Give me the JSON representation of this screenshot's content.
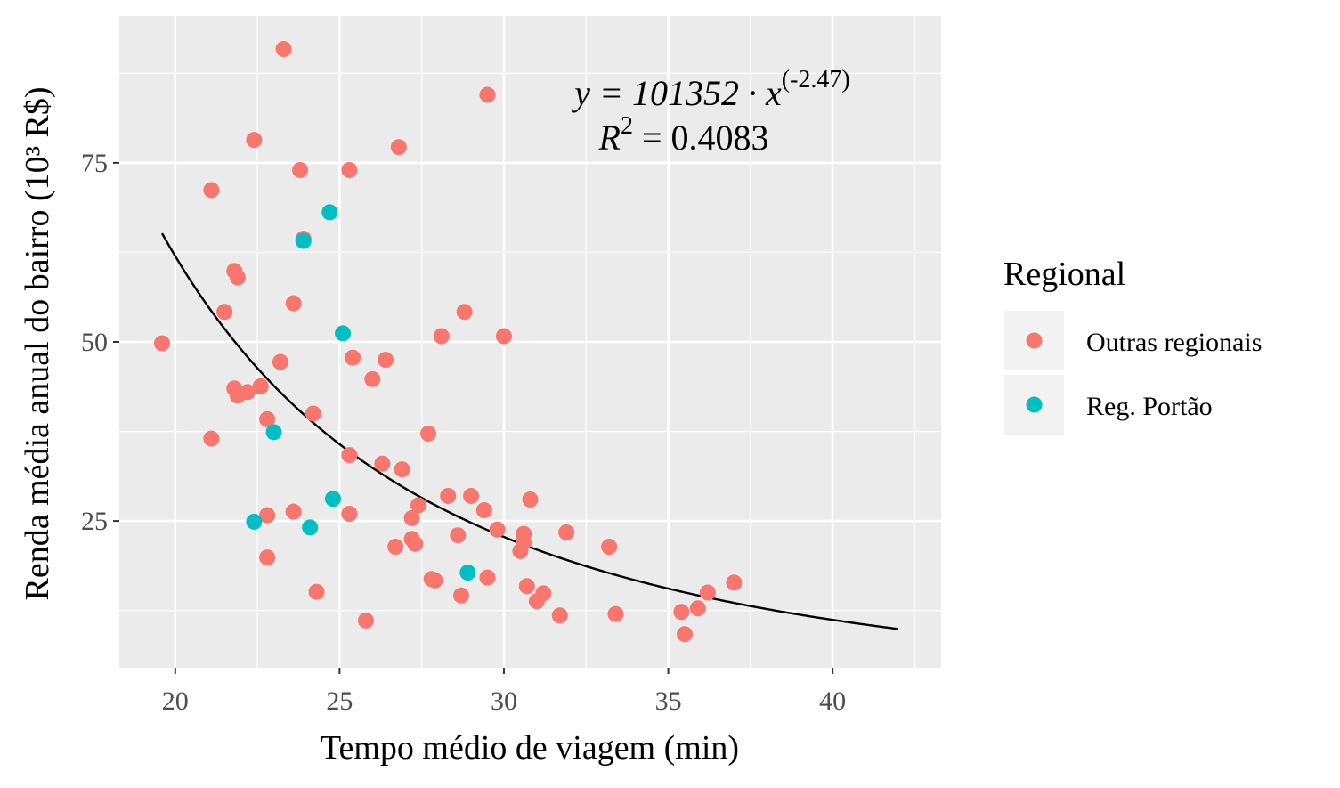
{
  "chart_data": {
    "type": "scatter",
    "title": "",
    "xlabel": "Tempo médio de viagem (min)",
    "ylabel": "Renda média anual do bairro (10³ R$)",
    "xlim": [
      18.3,
      43.3
    ],
    "ylim": [
      4.5,
      95.5
    ],
    "xticks": [
      20,
      25,
      30,
      35,
      40
    ],
    "yticks": [
      25,
      50,
      75
    ],
    "x_tick_labels": [
      "20",
      "25",
      "30",
      "35",
      "40"
    ],
    "y_tick_labels": [
      "25",
      "50",
      "75"
    ],
    "grid": true,
    "legend": {
      "title": "Regional",
      "position": "right",
      "entries": [
        "Outras regionais",
        "Reg. Portão"
      ]
    },
    "annotation": {
      "equation_prefix": "y = 101352 · x",
      "equation_exponent": "(-2.47)",
      "r2_label": "R",
      "r2_exponent": "2",
      "r2_value": " = 0.4083"
    },
    "fit": {
      "name": "y = 101352 · x^(-2.47)",
      "coefficient": 101352,
      "exponent": -2.47,
      "x_range": [
        19.6,
        42.0
      ],
      "color": "#000000"
    },
    "series": [
      {
        "name": "Outras regionais",
        "color": "#F8766D",
        "points": [
          [
            19.6,
            49.8
          ],
          [
            21.1,
            71.2
          ],
          [
            21.1,
            36.5
          ],
          [
            21.5,
            54.2
          ],
          [
            21.8,
            59.9
          ],
          [
            21.9,
            59.0
          ],
          [
            21.8,
            43.5
          ],
          [
            21.9,
            42.5
          ],
          [
            22.2,
            43.0
          ],
          [
            22.4,
            78.2
          ],
          [
            22.6,
            43.8
          ],
          [
            22.8,
            39.2
          ],
          [
            22.8,
            25.8
          ],
          [
            22.8,
            19.9
          ],
          [
            23.2,
            47.2
          ],
          [
            23.3,
            90.9
          ],
          [
            23.6,
            26.3
          ],
          [
            23.6,
            55.4
          ],
          [
            23.8,
            74.0
          ],
          [
            23.9,
            64.4
          ],
          [
            24.2,
            40.0
          ],
          [
            24.3,
            15.1
          ],
          [
            25.3,
            74.0
          ],
          [
            25.3,
            34.2
          ],
          [
            25.4,
            47.8
          ],
          [
            25.3,
            26.0
          ],
          [
            25.8,
            11.1
          ],
          [
            26.0,
            44.8
          ],
          [
            26.3,
            33.0
          ],
          [
            26.4,
            47.5
          ],
          [
            26.7,
            21.4
          ],
          [
            26.8,
            77.2
          ],
          [
            26.9,
            32.2
          ],
          [
            27.2,
            22.5
          ],
          [
            27.2,
            25.4
          ],
          [
            27.3,
            21.8
          ],
          [
            27.4,
            27.2
          ],
          [
            27.7,
            37.2
          ],
          [
            27.8,
            16.9
          ],
          [
            27.9,
            16.7
          ],
          [
            28.1,
            50.8
          ],
          [
            28.3,
            28.5
          ],
          [
            28.6,
            23.0
          ],
          [
            28.7,
            14.6
          ],
          [
            28.8,
            54.2
          ],
          [
            29.0,
            28.5
          ],
          [
            29.4,
            26.5
          ],
          [
            29.5,
            17.1
          ],
          [
            29.5,
            84.5
          ],
          [
            29.8,
            23.8
          ],
          [
            30.0,
            50.8
          ],
          [
            30.5,
            20.8
          ],
          [
            30.6,
            23.2
          ],
          [
            30.6,
            22.0
          ],
          [
            30.7,
            15.9
          ],
          [
            30.8,
            28.0
          ],
          [
            31.0,
            13.8
          ],
          [
            31.2,
            14.9
          ],
          [
            31.7,
            11.8
          ],
          [
            31.9,
            23.4
          ],
          [
            33.2,
            21.4
          ],
          [
            33.4,
            12.0
          ],
          [
            35.4,
            12.3
          ],
          [
            35.5,
            9.2
          ],
          [
            35.9,
            12.8
          ],
          [
            36.2,
            15.0
          ],
          [
            37.0,
            16.4
          ]
        ]
      },
      {
        "name": "Reg. Portão",
        "color": "#00BFC4",
        "points": [
          [
            22.4,
            24.9
          ],
          [
            23.0,
            37.4
          ],
          [
            23.9,
            64.1
          ],
          [
            24.1,
            24.1
          ],
          [
            24.7,
            68.1
          ],
          [
            24.8,
            28.1
          ],
          [
            25.1,
            51.2
          ],
          [
            28.9,
            17.8
          ]
        ]
      }
    ]
  }
}
